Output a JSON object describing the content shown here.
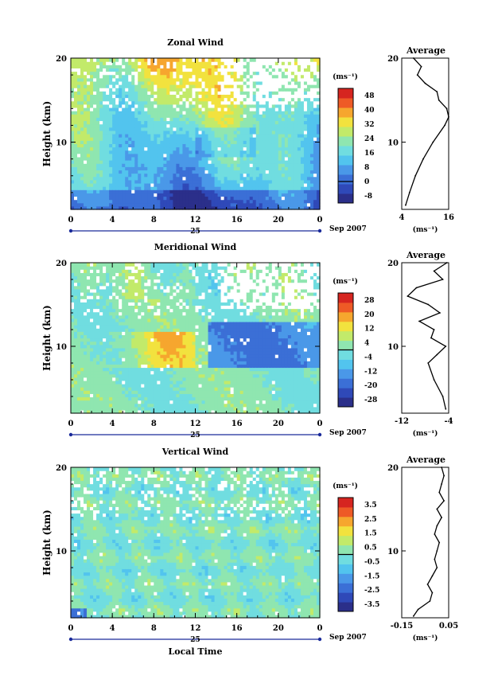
{
  "figure": {
    "x_label_bottom": "Local Time",
    "date_label": "Sep 2007",
    "day_label": "25",
    "unit_label": "(ms⁻¹)"
  },
  "chart_data": [
    {
      "type": "heatmap",
      "title": "Zonal Wind",
      "xlabel": "",
      "ylabel": "Height (km)",
      "xlim": [
        0,
        24
      ],
      "ylim": [
        2,
        20
      ],
      "x_ticks": [
        "0",
        "4",
        "8",
        "12",
        "16",
        "20",
        "0"
      ],
      "y_ticks": [
        "10",
        "20"
      ],
      "colorbar": {
        "unit": "(ms⁻¹)",
        "levels": [
          -8,
          0,
          8,
          16,
          24,
          32,
          40,
          48
        ],
        "labels": [
          "-8",
          "0",
          "8",
          "16",
          "24",
          "32",
          "40",
          "48"
        ],
        "zero_line": 0
      },
      "profile": {
        "title": "Average",
        "xlabel": "(ms⁻¹)",
        "xlim": [
          4,
          16
        ],
        "x_ticks": [
          "4",
          "16"
        ],
        "heights": [
          2.5,
          4,
          6,
          8,
          10,
          12,
          13,
          14,
          15,
          16,
          17,
          18,
          19,
          20
        ],
        "values": [
          5,
          6,
          7.5,
          9.5,
          12,
          15,
          16,
          15.5,
          13.5,
          13,
          10,
          8,
          9,
          7
        ]
      }
    },
    {
      "type": "heatmap",
      "title": "Meridional Wind",
      "xlabel": "",
      "ylabel": "Height (km)",
      "xlim": [
        0,
        24
      ],
      "ylim": [
        2,
        20
      ],
      "x_ticks": [
        "0",
        "4",
        "8",
        "12",
        "16",
        "20",
        "0"
      ],
      "y_ticks": [
        "10",
        "20"
      ],
      "colorbar": {
        "unit": "(ms⁻¹)",
        "levels": [
          -28,
          -20,
          -12,
          -4,
          4,
          12,
          20,
          28
        ],
        "labels": [
          "-28",
          "-20",
          "-12",
          "-4",
          "4",
          "12",
          "20",
          "28"
        ],
        "zero_line": 0
      },
      "profile": {
        "title": "Average",
        "xlabel": "(ms⁻¹)",
        "xlim": [
          -12,
          -4
        ],
        "x_ticks": [
          "-12",
          "-4"
        ],
        "heights": [
          2.5,
          4,
          6,
          8,
          9,
          10,
          11,
          12,
          13,
          14,
          15,
          16,
          17,
          18,
          19,
          20
        ],
        "values": [
          -4.5,
          -5,
          -6.5,
          -7.5,
          -6,
          -4.5,
          -7,
          -6.5,
          -9,
          -5.5,
          -7.5,
          -11,
          -9.5,
          -5,
          -6.5,
          -4.3
        ]
      }
    },
    {
      "type": "heatmap",
      "title": "Vertical Wind",
      "xlabel": "Local Time",
      "ylabel": "Height (km)",
      "xlim": [
        0,
        24
      ],
      "ylim": [
        2,
        20
      ],
      "x_ticks": [
        "0",
        "4",
        "8",
        "12",
        "16",
        "20",
        "0"
      ],
      "y_ticks": [
        "10",
        "20"
      ],
      "colorbar": {
        "unit": "(ms⁻¹)",
        "levels": [
          -3.5,
          -2.5,
          -1.5,
          -0.5,
          0.5,
          1.5,
          2.5,
          3.5
        ],
        "labels": [
          "-3.5",
          "-2.5",
          "-1.5",
          "-0.5",
          "0.5",
          "1.5",
          "2.5",
          "3.5"
        ],
        "zero_line": 0
      },
      "profile": {
        "title": "Average",
        "xlabel": "(ms⁻¹)",
        "xlim": [
          -0.15,
          0.05
        ],
        "x_ticks": [
          "-0.15",
          "0.05"
        ],
        "heights": [
          2.2,
          3,
          4,
          5,
          6,
          7,
          8,
          9,
          10,
          11,
          12,
          13,
          14,
          15,
          16,
          17,
          18,
          19,
          20
        ],
        "values": [
          -0.1,
          -0.08,
          -0.03,
          -0.02,
          -0.04,
          -0.02,
          0.0,
          -0.01,
          0.0,
          0.01,
          -0.01,
          0.0,
          0.02,
          0.0,
          0.03,
          0.01,
          0.02,
          0.03,
          0.02
        ]
      }
    }
  ]
}
